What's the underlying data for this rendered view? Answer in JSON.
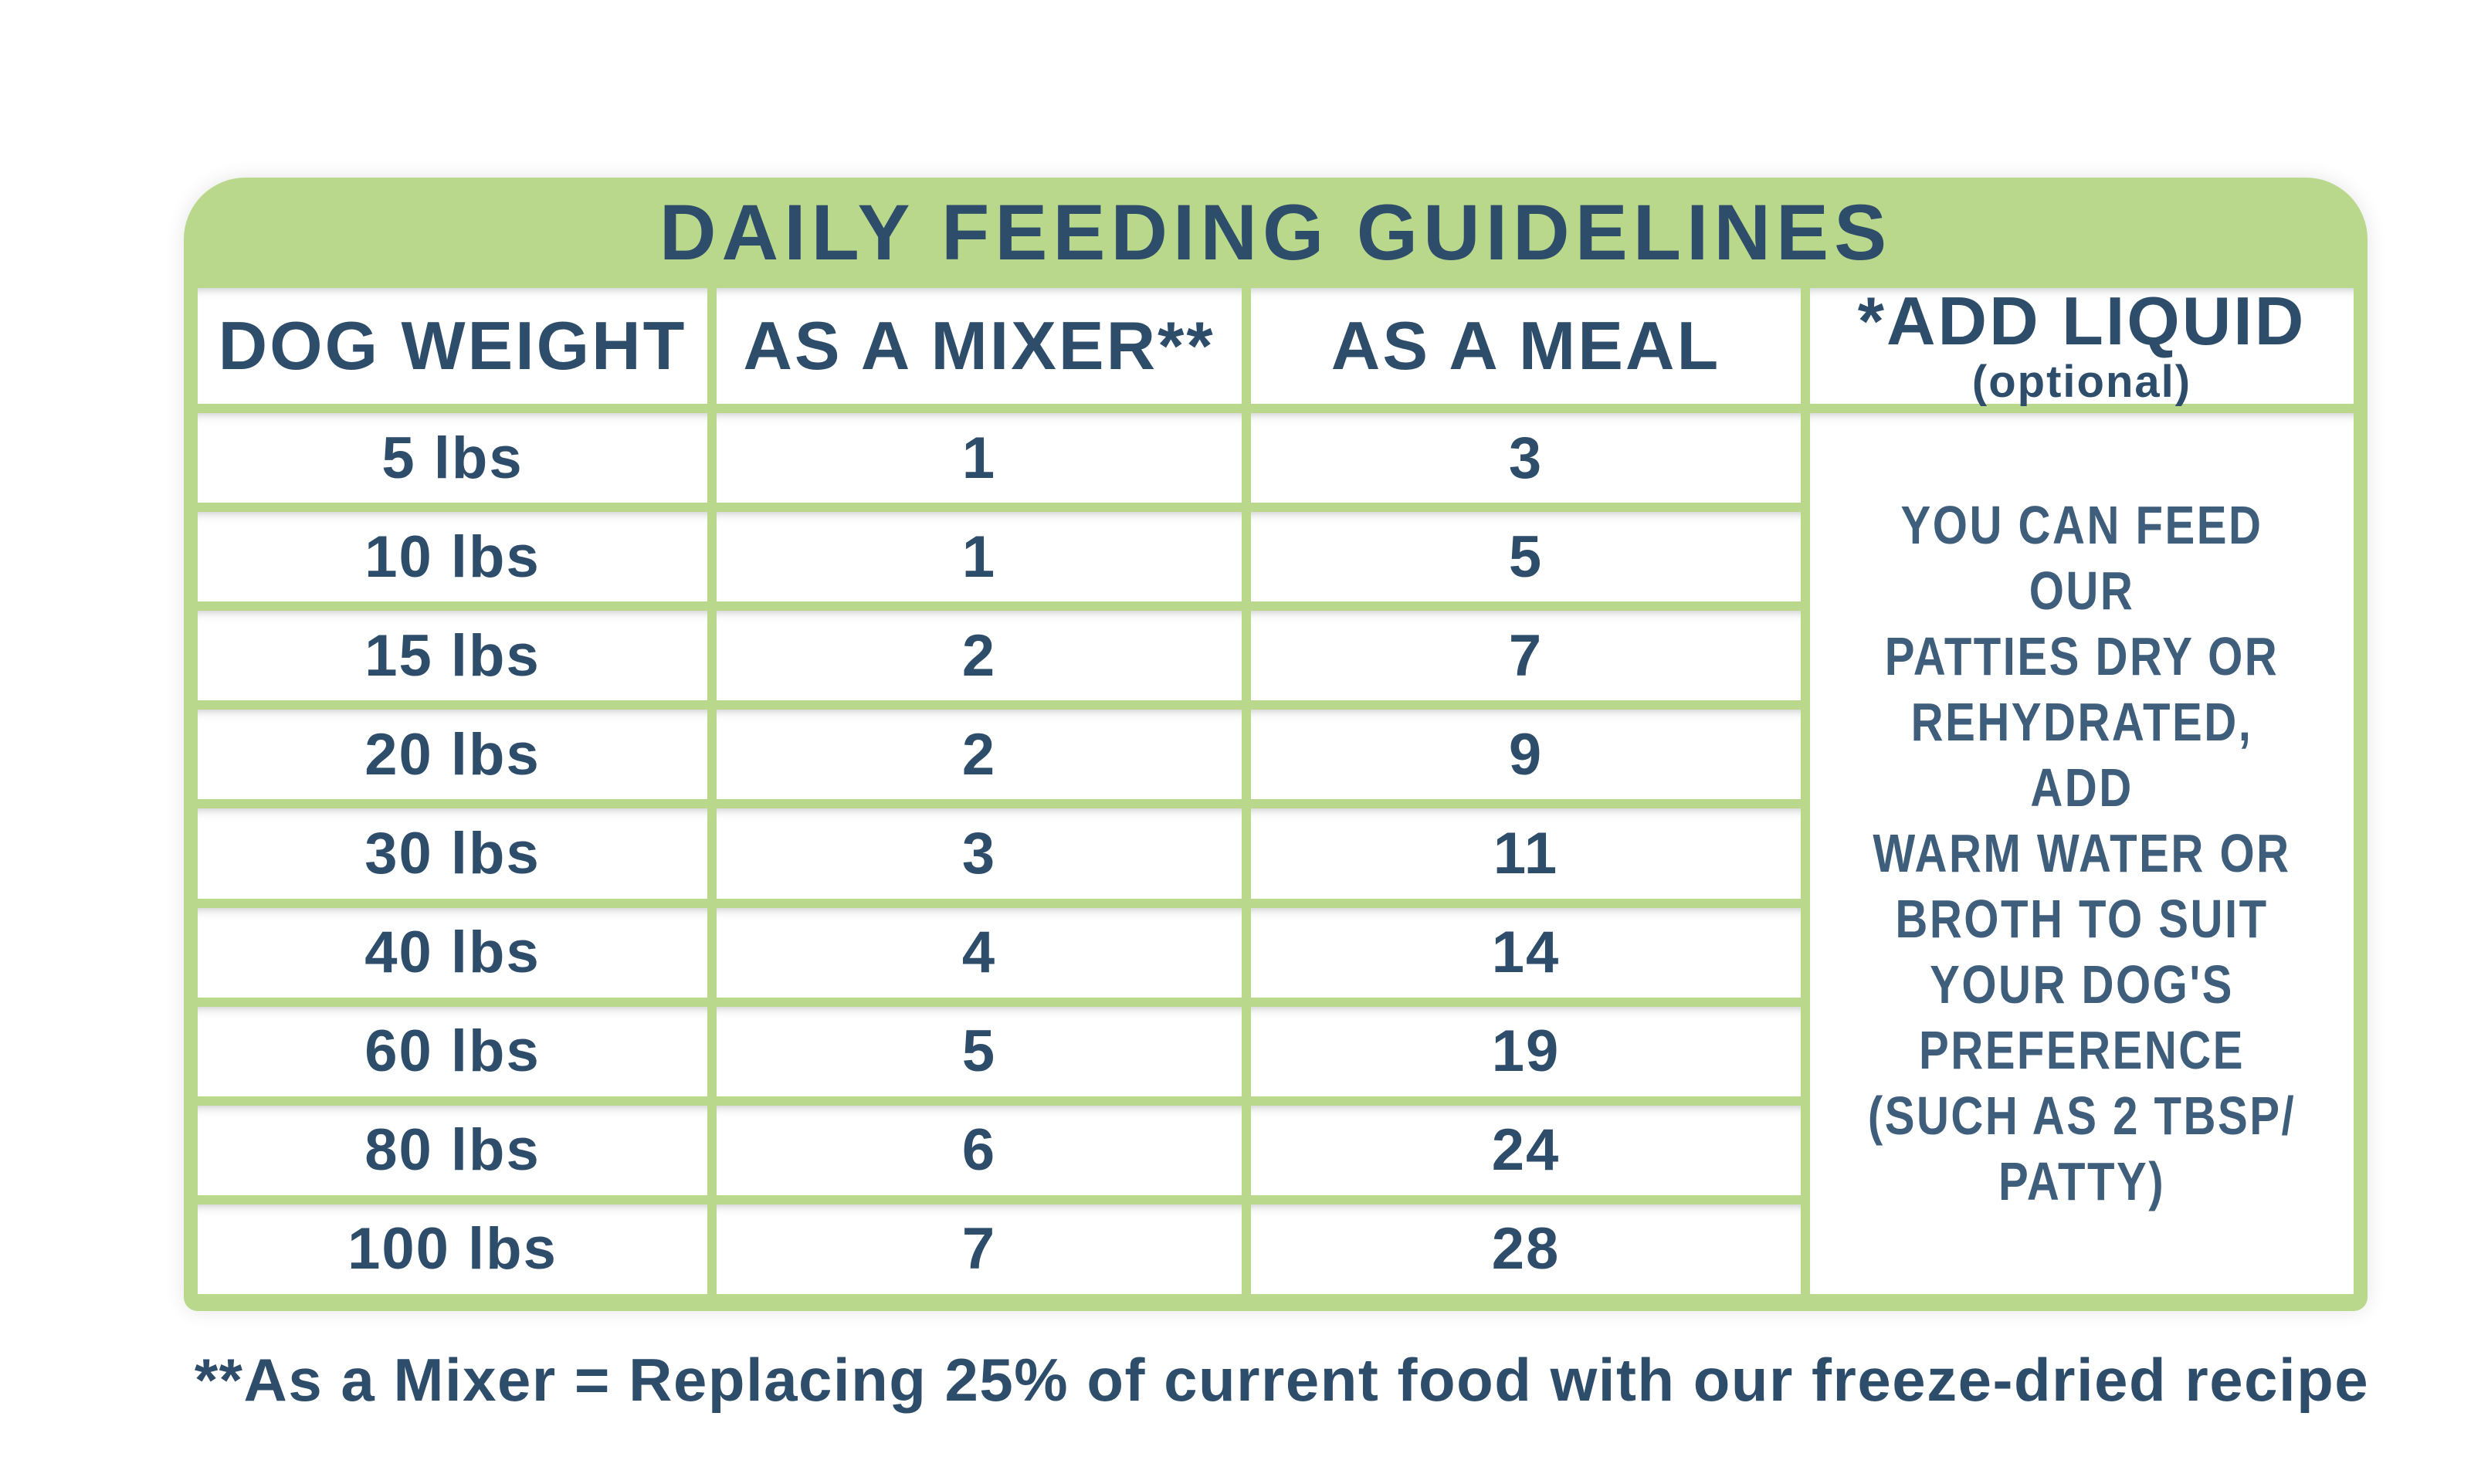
{
  "page": {
    "title": "DAILY FEEDING GUIDELINES",
    "footnote": "**As a Mixer = Replacing 25% of current food with our freeze-dried recipe"
  },
  "colors": {
    "background": "#ffffff",
    "green": "#b9d88b",
    "navy": "#2e4d6b",
    "stamp_navy": "#3f5e7c"
  },
  "table": {
    "columns": {
      "weight": "DOG WEIGHT",
      "mixer": "AS A MIXER**",
      "meal": "AS A MEAL"
    },
    "add_liquid": {
      "header": "*ADD LIQUID",
      "subheader": "(optional)",
      "body": "YOU CAN FEED OUR\nPATTIES DRY OR\nREHYDRATED, ADD\nWARM WATER OR\nBROTH TO SUIT\nYOUR DOG'S\nPREFERENCE\n(SUCH AS 2 TBSP/\nPATTY)"
    },
    "rows": [
      {
        "weight": "5 lbs",
        "mixer": "1",
        "meal": "3"
      },
      {
        "weight": "10 lbs",
        "mixer": "1",
        "meal": "5"
      },
      {
        "weight": "15 lbs",
        "mixer": "2",
        "meal": "7"
      },
      {
        "weight": "20 lbs",
        "mixer": "2",
        "meal": "9"
      },
      {
        "weight": "30 lbs",
        "mixer": "3",
        "meal": "11"
      },
      {
        "weight": "40 lbs",
        "mixer": "4",
        "meal": "14"
      },
      {
        "weight": "60 lbs",
        "mixer": "5",
        "meal": "19"
      },
      {
        "weight": "80 lbs",
        "mixer": "6",
        "meal": "24"
      },
      {
        "weight": "100 lbs",
        "mixer": "7",
        "meal": "28"
      }
    ]
  }
}
